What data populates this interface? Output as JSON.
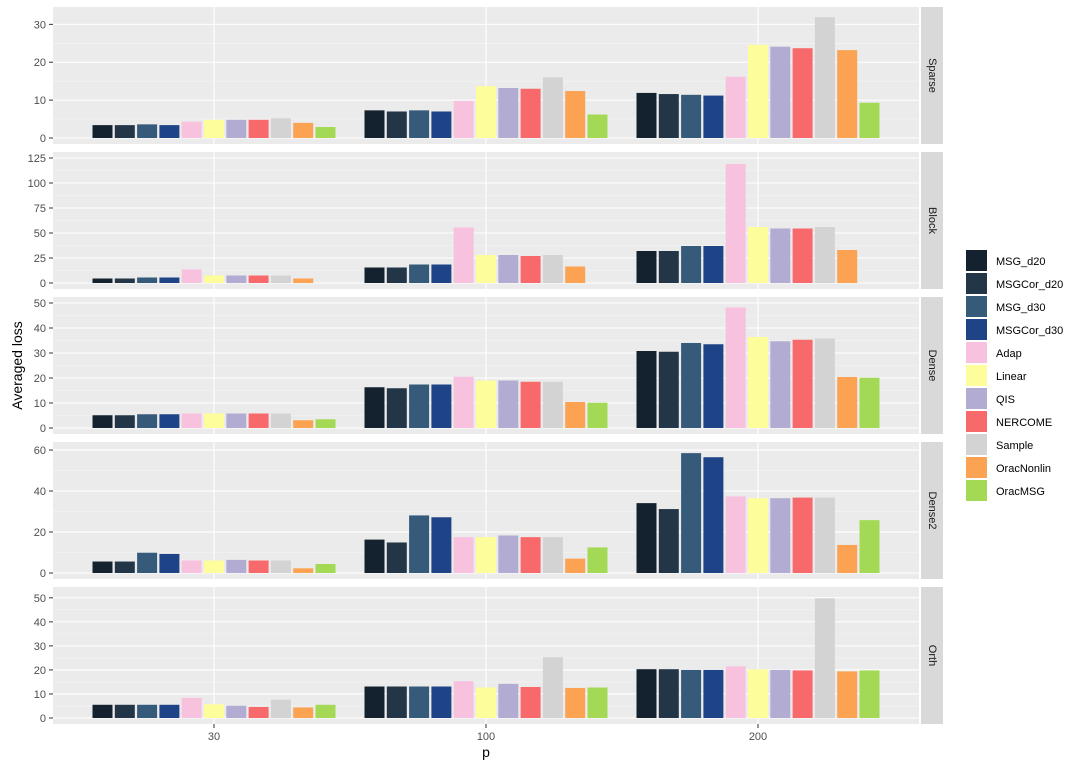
{
  "chart_data": {
    "type": "bar",
    "xlabel": "p",
    "ylabel": "Averaged loss",
    "categories": [
      "30",
      "100",
      "200"
    ],
    "series": [
      {
        "name": "MSG_d20",
        "color": "#14212e"
      },
      {
        "name": "MSGCor_d20",
        "color": "#233647"
      },
      {
        "name": "MSG_d30",
        "color": "#365a7a"
      },
      {
        "name": "MSGCor_d30",
        "color": "#1f4387"
      },
      {
        "name": "Adap",
        "color": "#f8c2df"
      },
      {
        "name": "Linear",
        "color": "#fdfd9b"
      },
      {
        "name": "QIS",
        "color": "#b2abd2"
      },
      {
        "name": "NERCOME",
        "color": "#f8696b"
      },
      {
        "name": "Sample",
        "color": "#d3d3d3"
      },
      {
        "name": "OracNonlin",
        "color": "#fca353"
      },
      {
        "name": "OracMSG",
        "color": "#a4d955"
      }
    ],
    "panels": [
      {
        "name": "Sparse",
        "ylim": [
          0,
          33
        ],
        "ticks": [
          0,
          10,
          20,
          30
        ],
        "values": [
          [
            3.4,
            3.4,
            3.6,
            3.4,
            4.3,
            4.8,
            4.8,
            4.8,
            5.2,
            4.0,
            2.9
          ],
          [
            7.3,
            7.0,
            7.3,
            7.0,
            9.8,
            13.7,
            13.2,
            13.0,
            16.0,
            12.4,
            6.2
          ],
          [
            11.9,
            11.6,
            11.4,
            11.2,
            16.2,
            24.6,
            24.1,
            23.7,
            31.9,
            23.2,
            9.3
          ]
        ]
      },
      {
        "name": "Block",
        "ylim": [
          0,
          125
        ],
        "ticks": [
          0,
          25,
          50,
          75,
          100,
          125
        ],
        "values": [
          [
            4.5,
            4.5,
            5.5,
            5.5,
            13.5,
            7.5,
            7.5,
            7.5,
            7.5,
            4.5,
            0
          ],
          [
            15.5,
            15.5,
            18.5,
            18.5,
            55.5,
            28.0,
            28.0,
            27.0,
            28.0,
            16.5,
            0
          ],
          [
            32.0,
            32.0,
            37.0,
            37.0,
            119.0,
            56.0,
            54.5,
            54.5,
            56.0,
            33.0,
            0
          ]
        ]
      },
      {
        "name": "Dense",
        "ylim": [
          0,
          50
        ],
        "ticks": [
          0,
          10,
          20,
          30,
          40,
          50
        ],
        "values": [
          [
            5.1,
            5.1,
            5.5,
            5.5,
            5.8,
            5.8,
            5.8,
            5.8,
            5.8,
            3.1,
            3.5
          ],
          [
            16.3,
            15.9,
            17.4,
            17.4,
            20.5,
            19.0,
            19.0,
            18.5,
            18.5,
            10.4,
            10.1
          ],
          [
            30.8,
            30.5,
            34.0,
            33.5,
            48.2,
            36.4,
            34.7,
            35.3,
            35.8,
            20.4,
            20.1
          ]
        ]
      },
      {
        "name": "Dense2",
        "ylim": [
          0,
          61
        ],
        "ticks": [
          0,
          20,
          40,
          60
        ],
        "values": [
          [
            5.6,
            5.6,
            9.9,
            9.3,
            6.1,
            6.1,
            6.4,
            6.1,
            6.1,
            2.3,
            4.4
          ],
          [
            16.3,
            14.9,
            28.1,
            27.2,
            17.5,
            17.5,
            18.3,
            17.5,
            17.5,
            7.0,
            12.5
          ],
          [
            34.1,
            31.2,
            58.5,
            56.5,
            37.4,
            36.5,
            36.5,
            36.8,
            36.8,
            13.7,
            25.8
          ]
        ]
      },
      {
        "name": "Orth",
        "ylim": [
          0,
          52
        ],
        "ticks": [
          0,
          10,
          20,
          30,
          40,
          50
        ],
        "values": [
          [
            5.5,
            5.5,
            5.5,
            5.5,
            8.4,
            5.7,
            5.1,
            4.6,
            7.6,
            4.4,
            5.5
          ],
          [
            13.1,
            13.1,
            13.1,
            13.1,
            15.3,
            12.7,
            14.2,
            12.9,
            25.3,
            12.5,
            12.7
          ],
          [
            20.3,
            20.3,
            20.0,
            20.0,
            21.5,
            20.2,
            20.0,
            19.8,
            49.8,
            19.4,
            19.8
          ]
        ]
      }
    ],
    "grid": true,
    "legend": "right"
  }
}
